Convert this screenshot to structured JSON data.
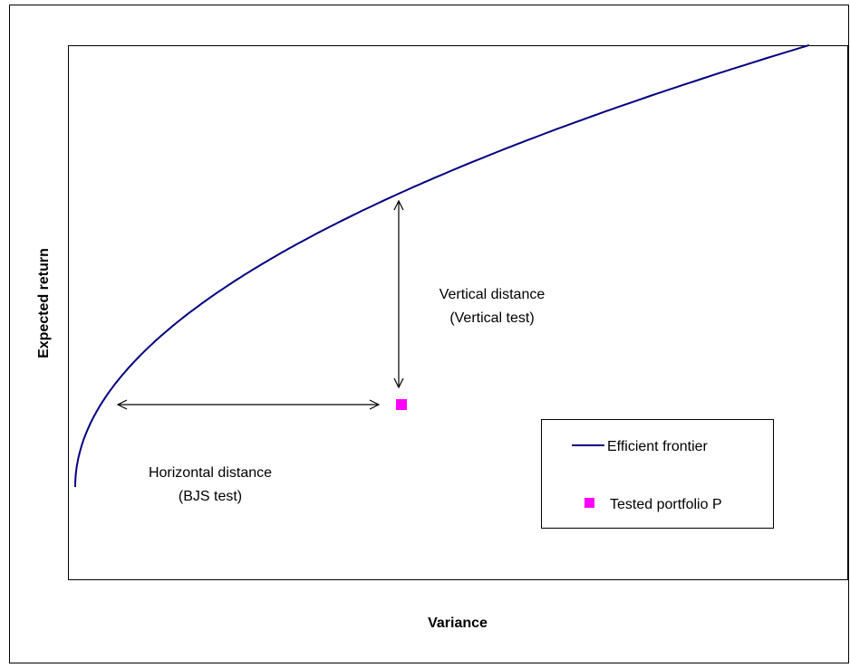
{
  "diagram": {
    "y_axis_label": "Expected return",
    "x_axis_label": "Variance",
    "annotations": {
      "vertical": [
        "Vertical distance",
        "(Vertical test)"
      ],
      "horizontal": [
        "Horizontal distance",
        "(BJS test)"
      ]
    },
    "legend": [
      "Efficient frontier",
      "Tested portfolio P"
    ]
  }
}
